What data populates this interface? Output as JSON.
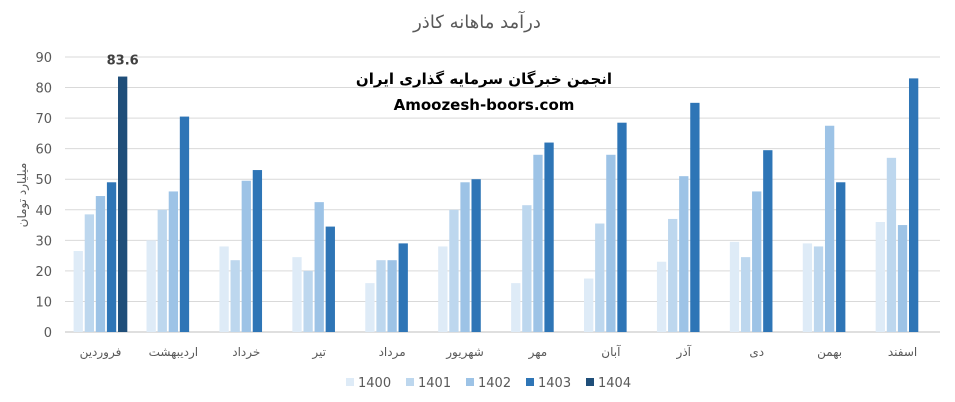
{
  "chart_data": {
    "type": "bar",
    "title": "درآمد ماهانه کاذر",
    "ylabel": "میلیارد تومان",
    "ylim": [
      0,
      90
    ],
    "yticks": [
      0,
      10,
      20,
      30,
      40,
      50,
      60,
      70,
      80,
      90
    ],
    "grid": true,
    "legend": "bottom",
    "categories": [
      "فروردین",
      "اردیبهشت",
      "خرداد",
      "تیر",
      "مرداد",
      "شهریور",
      "مهر",
      "آبان",
      "آذر",
      "دی",
      "بهمن",
      "اسفند"
    ],
    "series": [
      {
        "name": "1400",
        "color": "#deebf7",
        "values": [
          26.5,
          30,
          28,
          24.5,
          16,
          28,
          16,
          17.5,
          23,
          29.5,
          29,
          36
        ]
      },
      {
        "name": "1401",
        "color": "#bdd7ee",
        "values": [
          38.5,
          40,
          23.5,
          20,
          23.5,
          40,
          41.5,
          35.5,
          37,
          24.5,
          28,
          57
        ]
      },
      {
        "name": "1402",
        "color": "#9dc3e6",
        "values": [
          44.5,
          46,
          49.5,
          42.5,
          23.5,
          49,
          58,
          58,
          51,
          46,
          67.5,
          35
        ]
      },
      {
        "name": "1403",
        "color": "#2e75b6",
        "values": [
          49,
          70.5,
          53,
          34.5,
          29,
          50,
          62,
          68.5,
          75,
          59.5,
          49,
          83
        ]
      },
      {
        "name": "1404",
        "color": "#1f4e79",
        "values": [
          83.6,
          null,
          null,
          null,
          null,
          null,
          null,
          null,
          null,
          null,
          null,
          null
        ]
      }
    ],
    "annotations": [
      {
        "category_index": 0,
        "series_index": 4,
        "text": "83.6"
      }
    ]
  },
  "watermark": {
    "line1": "انجمن خبرگان سرمایه گذاری ایران",
    "line2": "Amoozesh-boors.com"
  }
}
